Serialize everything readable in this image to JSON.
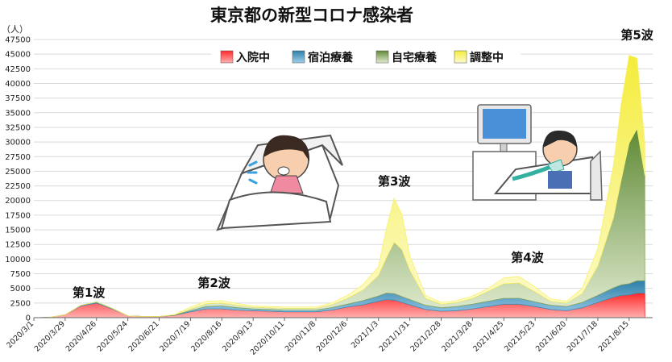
{
  "chart_data": {
    "type": "area",
    "title": "東京都の新型コロナ感染者",
    "y_unit_label": "（人）",
    "ylim": [
      0,
      47500
    ],
    "y_ticks": [
      0,
      2500,
      5000,
      7500,
      10000,
      12500,
      15000,
      17500,
      20000,
      22500,
      25000,
      27500,
      30000,
      32500,
      35000,
      37500,
      40000,
      42500,
      45000,
      47500
    ],
    "x_tick_labels": [
      "2020/3/1",
      "2020/3/29",
      "2020/4/26",
      "2020/5/24",
      "2020/6/21",
      "2020/7/19",
      "2020/8/16",
      "2020/9/13",
      "2020/10/11",
      "2020/11/8",
      "2020/12/6",
      "2021/1/3",
      "2021/1/31",
      "2021/2/28",
      "2021/3/28",
      "2021/4/25",
      "2021/5/23",
      "2021/6/20",
      "2021/7/18",
      "2021/8/15"
    ],
    "grid": "horizontal",
    "legend_position": "top",
    "stacked": true,
    "x": [
      "2020/3/1",
      "2020/3/15",
      "2020/3/29",
      "2020/4/12",
      "2020/4/26",
      "2020/5/10",
      "2020/5/24",
      "2020/6/7",
      "2020/6/21",
      "2020/7/5",
      "2020/7/19",
      "2020/8/2",
      "2020/8/16",
      "2020/8/30",
      "2020/9/13",
      "2020/9/27",
      "2020/10/11",
      "2020/10/25",
      "2020/11/8",
      "2020/11/22",
      "2020/12/6",
      "2020/12/20",
      "2021/1/3",
      "2021/1/10",
      "2021/1/17",
      "2021/1/24",
      "2021/1/31",
      "2021/2/14",
      "2021/2/28",
      "2021/3/14",
      "2021/3/28",
      "2021/4/11",
      "2021/4/25",
      "2021/5/9",
      "2021/5/23",
      "2021/6/6",
      "2021/6/20",
      "2021/7/4",
      "2021/7/18",
      "2021/8/1",
      "2021/8/8",
      "2021/8/15",
      "2021/8/22",
      "2021/8/29"
    ],
    "series": [
      {
        "name": "入院中",
        "color": "#e8262a",
        "values": [
          0,
          50,
          500,
          2000,
          2500,
          1500,
          300,
          200,
          200,
          400,
          1000,
          1500,
          1500,
          1300,
          1200,
          1100,
          1000,
          1000,
          1000,
          1300,
          1800,
          2200,
          2800,
          3100,
          3000,
          2600,
          2200,
          1400,
          1100,
          1200,
          1500,
          1900,
          2300,
          2300,
          1900,
          1400,
          1200,
          1700,
          2600,
          3500,
          3800,
          3900,
          4200,
          4200
        ]
      },
      {
        "name": "宿泊療養",
        "color": "#3d8fb8",
        "values": [
          0,
          0,
          0,
          100,
          200,
          100,
          0,
          0,
          0,
          50,
          200,
          400,
          500,
          400,
          300,
          300,
          300,
          300,
          300,
          400,
          500,
          700,
          900,
          1100,
          1100,
          1000,
          900,
          700,
          600,
          700,
          800,
          900,
          1000,
          1000,
          800,
          700,
          700,
          900,
          1200,
          1600,
          1800,
          1900,
          2100,
          2100
        ]
      },
      {
        "name": "自宅療養",
        "color": "#8aa55a",
        "values": [
          0,
          0,
          0,
          0,
          0,
          0,
          0,
          0,
          0,
          50,
          300,
          500,
          500,
          400,
          300,
          300,
          300,
          300,
          300,
          500,
          1000,
          1800,
          3500,
          6000,
          8800,
          8000,
          5000,
          1200,
          600,
          700,
          1000,
          1700,
          2500,
          2600,
          1700,
          700,
          600,
          1500,
          5000,
          12000,
          18000,
          24000,
          26000,
          18000
        ]
      },
      {
        "name": "調整中",
        "color": "#f7f06a",
        "values": [
          0,
          0,
          0,
          0,
          0,
          0,
          0,
          0,
          0,
          50,
          300,
          400,
          400,
          300,
          200,
          200,
          200,
          200,
          200,
          300,
          500,
          900,
          1500,
          5000,
          7500,
          6000,
          2500,
          500,
          300,
          300,
          400,
          500,
          1000,
          1100,
          800,
          400,
          300,
          900,
          3000,
          9000,
          13000,
          15000,
          12000,
          5500
        ]
      }
    ],
    "annotations": [
      {
        "text": "第1波",
        "x": "2020/4/19",
        "y": 3000
      },
      {
        "text": "第2波",
        "x": "2020/8/9",
        "y": 4700
      },
      {
        "text": "第3波",
        "x": "2021/1/17",
        "y": 22000
      },
      {
        "text": "第4波",
        "x": "2021/5/16",
        "y": 9000
      },
      {
        "text": "第5波",
        "x": "2021/8/22",
        "y": 47000
      }
    ]
  }
}
